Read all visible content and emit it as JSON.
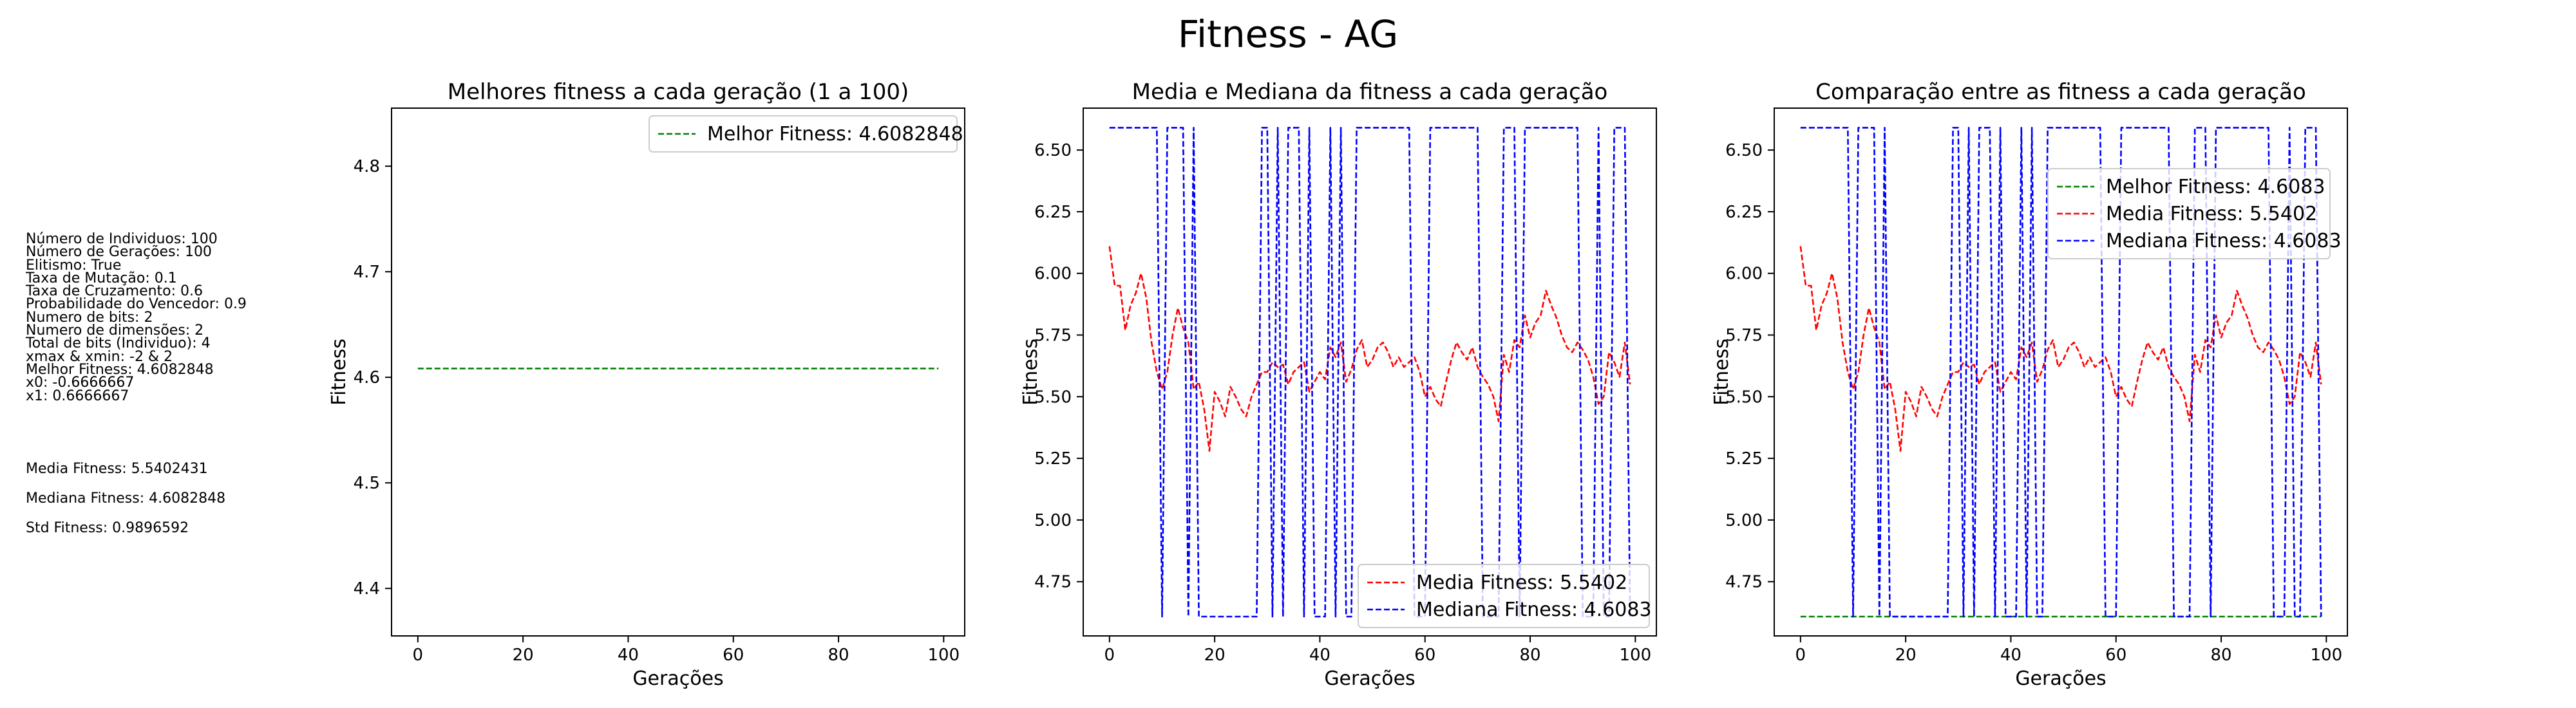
{
  "suptitle": "Fitness - AG",
  "params": [
    "Número de Individuos: 100",
    "Número de Gerações: 100",
    "Elitismo: True",
    "Taxa de Mutação: 0.1",
    "Taxa de Cruzamento: 0.6",
    "Probabilidade do Vencedor: 0.9",
    "Numero de bits: 2",
    "Numero de dimensões: 2",
    "Total de bits (Individuo): 4",
    "xmax & xmin: -2 & 2",
    "Melhor Fitness: 4.6082848",
    "x0: -0.6666667",
    "x1: 0.6666667"
  ],
  "stats": [
    "Media Fitness: 5.5402431",
    "Mediana Fitness: 4.6082848",
    "Std Fitness: 0.9896592"
  ],
  "colors": {
    "best": "#008000",
    "mean": "#ff0000",
    "median": "#0000ff"
  },
  "chart_data": [
    {
      "type": "line",
      "title": "Melhores fitness a cada geração (1 a 100)",
      "xlabel": "Gerações",
      "ylabel": "Fitness",
      "xlim": [
        -5,
        104
      ],
      "ylim": [
        4.355,
        4.855
      ],
      "xticks": [
        0,
        20,
        40,
        60,
        80,
        100
      ],
      "yticks": [
        4.4,
        4.5,
        4.6,
        4.7,
        4.8
      ],
      "ytick_labels": [
        "4.4",
        "4.5",
        "4.6",
        "4.7",
        "4.8"
      ],
      "legend_position": "upper right",
      "series": [
        {
          "name": "Melhor Fitness: 4.6082848",
          "color": "#008000",
          "key": "best"
        }
      ]
    },
    {
      "type": "line",
      "title": "Media e Mediana da fitness a cada geração",
      "xlabel": "Gerações",
      "ylabel": "Fitness",
      "xlim": [
        -5,
        104
      ],
      "ylim": [
        4.53,
        6.67
      ],
      "xticks": [
        0,
        20,
        40,
        60,
        80,
        100
      ],
      "yticks": [
        4.75,
        5.0,
        5.25,
        5.5,
        5.75,
        6.0,
        6.25,
        6.5
      ],
      "ytick_labels": [
        "4.75",
        "5.00",
        "5.25",
        "5.50",
        "5.75",
        "6.00",
        "6.25",
        "6.50"
      ],
      "legend_position": "lower right",
      "series": [
        {
          "name": "Media Fitness: 5.5402",
          "color": "#ff0000",
          "key": "mean"
        },
        {
          "name": "Mediana Fitness: 4.6083",
          "color": "#0000ff",
          "key": "median"
        }
      ]
    },
    {
      "type": "line",
      "title": "Comparação entre as fitness a cada geração",
      "xlabel": "Gerações",
      "ylabel": "Fitness",
      "xlim": [
        -5,
        104
      ],
      "ylim": [
        4.53,
        6.67
      ],
      "xticks": [
        0,
        20,
        40,
        60,
        80,
        100
      ],
      "yticks": [
        4.75,
        5.0,
        5.25,
        5.5,
        5.75,
        6.0,
        6.25,
        6.5
      ],
      "ytick_labels": [
        "4.75",
        "5.00",
        "5.25",
        "5.50",
        "5.75",
        "6.00",
        "6.25",
        "6.50"
      ],
      "legend_position": "upper right",
      "series": [
        {
          "name": "Melhor Fitness: 4.6083",
          "color": "#008000",
          "key": "best"
        },
        {
          "name": "Media Fitness: 5.5402",
          "color": "#ff0000",
          "key": "mean"
        },
        {
          "name": "Mediana Fitness: 4.6083",
          "color": "#0000ff",
          "key": "median"
        }
      ]
    }
  ],
  "series_values": {
    "best": [
      4.6083,
      4.6083,
      4.6083,
      4.6083,
      4.6083,
      4.6083,
      4.6083,
      4.6083,
      4.6083,
      4.6083,
      4.6083,
      4.6083,
      4.6083,
      4.6083,
      4.6083,
      4.6083,
      4.6083,
      4.6083,
      4.6083,
      4.6083,
      4.6083,
      4.6083,
      4.6083,
      4.6083,
      4.6083,
      4.6083,
      4.6083,
      4.6083,
      4.6083,
      4.6083,
      4.6083,
      4.6083,
      4.6083,
      4.6083,
      4.6083,
      4.6083,
      4.6083,
      4.6083,
      4.6083,
      4.6083,
      4.6083,
      4.6083,
      4.6083,
      4.6083,
      4.6083,
      4.6083,
      4.6083,
      4.6083,
      4.6083,
      4.6083,
      4.6083,
      4.6083,
      4.6083,
      4.6083,
      4.6083,
      4.6083,
      4.6083,
      4.6083,
      4.6083,
      4.6083,
      4.6083,
      4.6083,
      4.6083,
      4.6083,
      4.6083,
      4.6083,
      4.6083,
      4.6083,
      4.6083,
      4.6083,
      4.6083,
      4.6083,
      4.6083,
      4.6083,
      4.6083,
      4.6083,
      4.6083,
      4.6083,
      4.6083,
      4.6083,
      4.6083,
      4.6083,
      4.6083,
      4.6083,
      4.6083,
      4.6083,
      4.6083,
      4.6083,
      4.6083,
      4.6083,
      4.6083,
      4.6083,
      4.6083,
      4.6083,
      4.6083,
      4.6083,
      4.6083,
      4.6083,
      4.6083,
      4.6083
    ],
    "mean": [
      6.11,
      5.95,
      5.95,
      5.77,
      5.87,
      5.92,
      6.0,
      5.9,
      5.72,
      5.6,
      5.53,
      5.6,
      5.75,
      5.86,
      5.78,
      5.72,
      5.53,
      5.56,
      5.45,
      5.28,
      5.52,
      5.48,
      5.42,
      5.54,
      5.5,
      5.45,
      5.42,
      5.5,
      5.55,
      5.6,
      5.6,
      5.64,
      5.62,
      5.63,
      5.55,
      5.6,
      5.62,
      5.64,
      5.52,
      5.56,
      5.6,
      5.57,
      5.7,
      5.66,
      5.72,
      5.56,
      5.61,
      5.69,
      5.73,
      5.62,
      5.65,
      5.7,
      5.72,
      5.68,
      5.62,
      5.66,
      5.62,
      5.64,
      5.66,
      5.6,
      5.5,
      5.54,
      5.49,
      5.46,
      5.56,
      5.65,
      5.72,
      5.68,
      5.65,
      5.7,
      5.62,
      5.58,
      5.55,
      5.5,
      5.4,
      5.67,
      5.6,
      5.73,
      5.7,
      5.83,
      5.74,
      5.8,
      5.83,
      5.93,
      5.87,
      5.82,
      5.75,
      5.7,
      5.68,
      5.72,
      5.69,
      5.65,
      5.58,
      5.47,
      5.5,
      5.68,
      5.64,
      5.58,
      5.72,
      5.55
    ],
    "median": [
      6.5906,
      6.5906,
      6.5906,
      6.5906,
      6.5906,
      6.5906,
      6.5906,
      6.5906,
      6.5906,
      6.5906,
      4.6083,
      6.5906,
      6.5906,
      6.5906,
      6.5906,
      4.6083,
      6.5906,
      4.6083,
      4.6083,
      4.6083,
      4.6083,
      4.6083,
      4.6083,
      4.6083,
      4.6083,
      4.6083,
      4.6083,
      4.6083,
      4.6083,
      6.5906,
      6.5906,
      4.6083,
      6.5906,
      4.6083,
      6.5906,
      6.5906,
      6.5906,
      4.6083,
      6.5906,
      4.6083,
      4.6083,
      4.6083,
      6.5906,
      4.6083,
      6.5906,
      4.6083,
      4.6083,
      6.5906,
      6.5906,
      6.5906,
      6.5906,
      6.5906,
      6.5906,
      6.5906,
      6.5906,
      6.5906,
      6.5906,
      6.5906,
      4.6083,
      4.6083,
      4.6083,
      6.5906,
      6.5906,
      6.5906,
      6.5906,
      6.5906,
      6.5906,
      6.5906,
      6.5906,
      6.5906,
      6.5906,
      4.6083,
      4.6083,
      4.6083,
      4.6083,
      6.5906,
      6.5906,
      6.5906,
      4.6083,
      6.5906,
      6.5906,
      6.5906,
      6.5906,
      6.5906,
      6.5906,
      6.5906,
      6.5906,
      6.5906,
      6.5906,
      6.5906,
      4.6083,
      4.6083,
      4.6083,
      6.5906,
      4.6083,
      4.6083,
      6.5906,
      6.5906,
      6.5906,
      4.6083
    ]
  }
}
